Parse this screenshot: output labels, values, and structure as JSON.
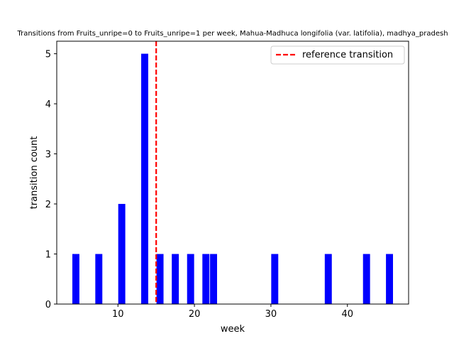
{
  "chart_data": {
    "type": "bar",
    "title": "Transitions from Fruits_unripe=0 to Fruits_unripe=1 per week, Mahua-Madhuca longifolia (var. latifolia), madhya_pradesh",
    "xlabel": "week",
    "ylabel": "transition count",
    "xlim": [
      2,
      48
    ],
    "ylim": [
      0,
      5.25
    ],
    "xticks": [
      10,
      20,
      30,
      40
    ],
    "yticks": [
      0,
      1,
      2,
      3,
      4,
      5
    ],
    "grid": false,
    "bar_color": "#0000ff",
    "bars": [
      {
        "week": 4,
        "count": 1
      },
      {
        "week": 7,
        "count": 1
      },
      {
        "week": 10,
        "count": 2
      },
      {
        "week": 13,
        "count": 5
      },
      {
        "week": 15,
        "count": 1
      },
      {
        "week": 17,
        "count": 1
      },
      {
        "week": 19,
        "count": 1
      },
      {
        "week": 21,
        "count": 1
      },
      {
        "week": 22,
        "count": 1
      },
      {
        "week": 30,
        "count": 1
      },
      {
        "week": 37,
        "count": 1
      },
      {
        "week": 42,
        "count": 1
      },
      {
        "week": 45,
        "count": 1
      }
    ],
    "reference_line": {
      "x": 15,
      "color": "#ff0000",
      "style": "dashed",
      "label": "reference transition"
    },
    "legend": {
      "placement": "top-right",
      "entries": [
        "reference transition"
      ]
    }
  }
}
